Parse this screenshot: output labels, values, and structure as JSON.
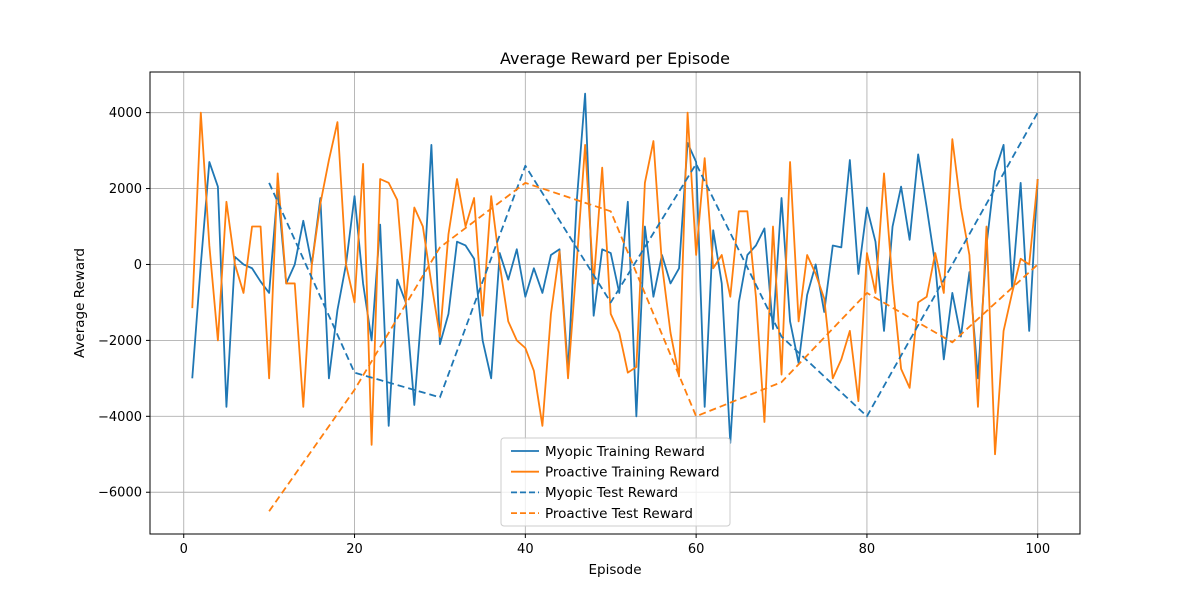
{
  "chart_data": {
    "type": "line",
    "title": "Average Reward per Episode",
    "xlabel": "Episode",
    "ylabel": "Average Reward",
    "xlim": [
      -3.95,
      104.95
    ],
    "ylim": [
      -7100,
      5070
    ],
    "xticks": [
      0,
      20,
      40,
      60,
      80,
      100
    ],
    "yticks": [
      -6000,
      -4000,
      -2000,
      0,
      2000,
      4000
    ],
    "xtick_labels": [
      "0",
      "20",
      "40",
      "60",
      "80",
      "100"
    ],
    "ytick_labels": [
      "−6000",
      "−4000",
      "−2000",
      "0",
      "2000",
      "4000"
    ],
    "grid": true,
    "legend_position": "lower-center",
    "series": [
      {
        "name": "Myopic Training Reward",
        "color": "#1f77b4",
        "style": "solid",
        "x": [
          1,
          2,
          3,
          4,
          5,
          6,
          7,
          8,
          9,
          10,
          11,
          12,
          13,
          14,
          15,
          16,
          17,
          18,
          19,
          20,
          21,
          22,
          23,
          24,
          25,
          26,
          27,
          28,
          29,
          30,
          31,
          32,
          33,
          34,
          35,
          36,
          37,
          38,
          39,
          40,
          41,
          42,
          43,
          44,
          45,
          46,
          47,
          48,
          49,
          50,
          51,
          52,
          53,
          54,
          55,
          56,
          57,
          58,
          59,
          60,
          61,
          62,
          63,
          64,
          65,
          66,
          67,
          68,
          69,
          70,
          71,
          72,
          73,
          74,
          75,
          76,
          77,
          78,
          79,
          80,
          81,
          82,
          83,
          84,
          85,
          86,
          87,
          88,
          89,
          90,
          91,
          92,
          93,
          94,
          95,
          96,
          97,
          98,
          99,
          100
        ],
        "y": [
          -3000,
          0,
          2700,
          2050,
          -3750,
          200,
          0,
          -100,
          -450,
          -750,
          2000,
          -500,
          0,
          1150,
          0,
          1750,
          -3000,
          -1200,
          0,
          1800,
          -500,
          -2000,
          1050,
          -4250,
          -400,
          -1000,
          -3700,
          -800,
          3150,
          -2100,
          -1300,
          600,
          500,
          150,
          -2000,
          -3000,
          300,
          -400,
          400,
          -850,
          -100,
          -750,
          250,
          400,
          -2800,
          1600,
          4500,
          -1350,
          400,
          300,
          -750,
          1650,
          -4000,
          1000,
          -850,
          250,
          -500,
          -100,
          3200,
          2700,
          -3750,
          900,
          -500,
          -4700,
          -1000,
          250,
          500,
          950,
          -1700,
          1750,
          -1500,
          -2600,
          -800,
          0,
          -1250,
          500,
          450,
          2750,
          -250,
          1500,
          600,
          -1750,
          1000,
          2050,
          650,
          2900,
          1500,
          0,
          -2500,
          -750,
          -1900,
          -200,
          -3000,
          500,
          2450,
          3150,
          -600,
          2150,
          -1750,
          2250
        ]
      },
      {
        "name": "Proactive Training Reward",
        "color": "#ff7f0e",
        "style": "solid",
        "x": [
          1,
          2,
          3,
          4,
          5,
          6,
          7,
          8,
          9,
          10,
          11,
          12,
          13,
          14,
          15,
          16,
          17,
          18,
          19,
          20,
          21,
          22,
          23,
          24,
          25,
          26,
          27,
          28,
          29,
          30,
          31,
          32,
          33,
          34,
          35,
          36,
          37,
          38,
          39,
          40,
          41,
          42,
          43,
          44,
          45,
          46,
          47,
          48,
          49,
          50,
          51,
          52,
          53,
          54,
          55,
          56,
          57,
          58,
          59,
          60,
          61,
          62,
          63,
          64,
          65,
          66,
          67,
          68,
          69,
          70,
          71,
          72,
          73,
          74,
          75,
          76,
          77,
          78,
          79,
          80,
          81,
          82,
          83,
          84,
          85,
          86,
          87,
          88,
          89,
          90,
          91,
          92,
          93,
          94,
          95,
          96,
          97,
          98,
          99,
          100
        ],
        "y": [
          -1150,
          4000,
          500,
          -2000,
          1650,
          0,
          -750,
          1000,
          1000,
          -3000,
          2400,
          -500,
          -500,
          -3750,
          0,
          1600,
          2750,
          3750,
          0,
          -1000,
          2650,
          -4750,
          2250,
          2150,
          1700,
          -1000,
          1500,
          1000,
          -500,
          -1900,
          800,
          2250,
          1000,
          1750,
          -1350,
          1800,
          0,
          -1500,
          -2000,
          -2200,
          -2800,
          -4250,
          -1300,
          350,
          -3000,
          0,
          3150,
          -500,
          2550,
          -1300,
          -1800,
          -2850,
          -2700,
          2150,
          3250,
          0,
          -1800,
          -2950,
          4000,
          250,
          2800,
          -100,
          250,
          -850,
          1400,
          1400,
          -850,
          -4150,
          1000,
          -2900,
          2700,
          -1500,
          250,
          -250,
          -900,
          -3000,
          -2500,
          -1750,
          -3600,
          300,
          -750,
          2400,
          -500,
          -2750,
          -3250,
          -1000,
          -850,
          300,
          -750,
          3300,
          1500,
          250,
          -3750,
          1000,
          -5000,
          -1750,
          -750,
          150,
          0,
          2250
        ]
      },
      {
        "name": "Myopic Test Reward",
        "color": "#1f77b4",
        "style": "dashed",
        "x": [
          10,
          20,
          30,
          40,
          50,
          60,
          70,
          80,
          90,
          100
        ],
        "y": [
          2150,
          -2850,
          -3500,
          2600,
          -1000,
          2650,
          -1900,
          -4000,
          0,
          4000
        ]
      },
      {
        "name": "Proactive Test Reward",
        "color": "#ff7f0e",
        "style": "dashed",
        "x": [
          10,
          20,
          30,
          40,
          50,
          60,
          70,
          80,
          90,
          100
        ],
        "y": [
          -6500,
          -3300,
          450,
          2150,
          1400,
          -4000,
          -3100,
          -750,
          -2050,
          0
        ]
      }
    ]
  }
}
